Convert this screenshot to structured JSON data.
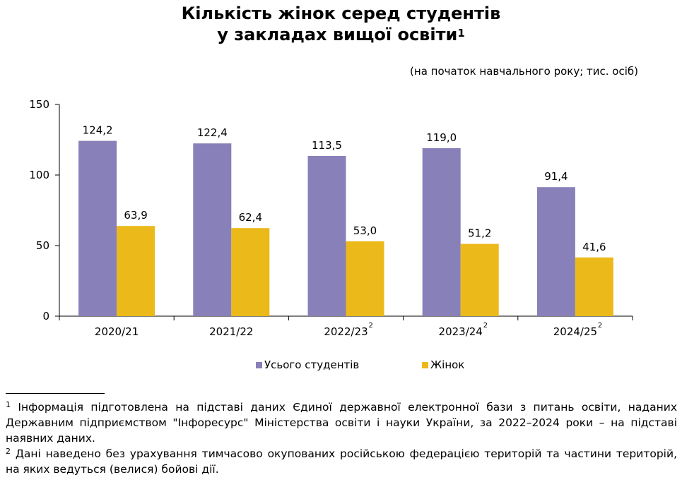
{
  "title": {
    "line1": "Кількість жінок серед студентів",
    "line2": "у закладах вищої освіти",
    "mark": "1"
  },
  "subtitle": "(на початок навчального року; тис. осіб)",
  "chart_data": {
    "type": "bar",
    "categories": [
      "2020/21",
      "2021/22",
      "2022/23",
      "2023/24",
      "2024/25"
    ],
    "category_marks": [
      "",
      "",
      "2",
      "2",
      "2"
    ],
    "series": [
      {
        "name": "Усього студентів",
        "values": [
          124.2,
          122.4,
          113.5,
          119.0,
          91.4
        ],
        "labels": [
          "124,2",
          "122,4",
          "113,5",
          "119,0",
          "91,4"
        ],
        "color": "#8880b8"
      },
      {
        "name": "Жінок",
        "values": [
          63.9,
          62.4,
          53.0,
          51.2,
          41.6
        ],
        "labels": [
          "63,9",
          "62,4",
          "53,0",
          "51,2",
          "41,6"
        ],
        "color": "#ebb91a"
      }
    ],
    "ylim": [
      0,
      150
    ],
    "yticks": [
      0,
      50,
      100,
      150
    ],
    "grid": false,
    "legend": "bottom"
  },
  "footnotes": [
    {
      "mark": "1",
      "text": "Інформація підготовлена на підставі даних Єдиної державної електронної бази з питань освіти, наданих Державним підприємством \"Інфоресурс\" Міністерства освіти і науки України, за 2022–2024 роки – на підставі наявних даних."
    },
    {
      "mark": "2",
      "text": "Дані наведено без урахування тимчасово окупованих російською федерацією територій та частини територій, на яких ведуться (велися) бойові дії."
    }
  ]
}
